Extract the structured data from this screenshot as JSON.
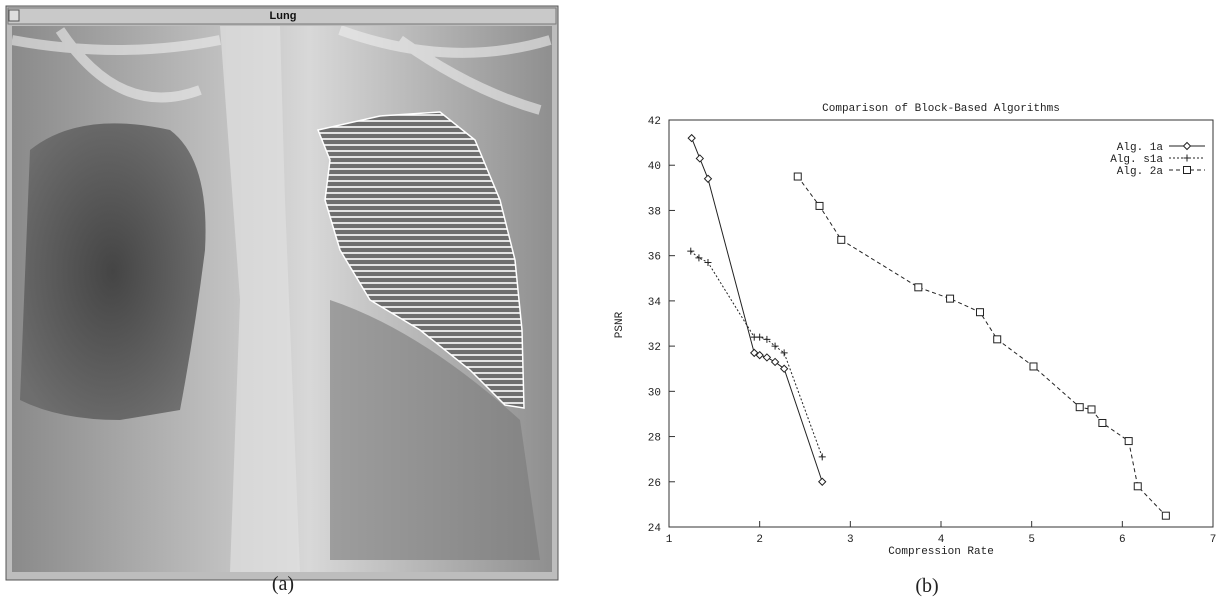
{
  "panel_a": {
    "window_title": "Lung",
    "caption": "(a)"
  },
  "chart_data": {
    "type": "line",
    "title": "Comparison of Block-Based Algorithms",
    "xlabel": "Compression Rate",
    "ylabel": "PSNR",
    "caption": "(b)",
    "xlim": [
      1,
      7
    ],
    "ylim": [
      24,
      42
    ],
    "xticks": [
      1,
      2,
      3,
      4,
      5,
      6,
      7
    ],
    "yticks": [
      24,
      26,
      28,
      30,
      32,
      34,
      36,
      38,
      40,
      42
    ],
    "grid": false,
    "legend": "upper-right",
    "series": [
      {
        "name": "Alg. 1a",
        "color": "#222222",
        "marker": "diamond",
        "dash": "solid",
        "x": [
          1.25,
          1.34,
          1.43,
          1.94,
          2.0,
          2.08,
          2.17,
          2.27,
          2.69
        ],
        "values": [
          41.2,
          40.3,
          39.4,
          31.7,
          31.6,
          31.5,
          31.3,
          31.0,
          26.0
        ]
      },
      {
        "name": "Alg. s1a",
        "color": "#222222",
        "marker": "plus",
        "dash": "dotted",
        "x": [
          1.24,
          1.33,
          1.43,
          1.94,
          2.0,
          2.08,
          2.17,
          2.27,
          2.69
        ],
        "values": [
          36.2,
          35.9,
          35.7,
          32.4,
          32.4,
          32.3,
          32.0,
          31.7,
          27.1
        ]
      },
      {
        "name": "Alg. 2a",
        "color": "#222222",
        "marker": "square",
        "dash": "dashed",
        "x": [
          2.42,
          2.66,
          2.9,
          3.75,
          4.1,
          4.43,
          4.62,
          5.02,
          5.53,
          5.66,
          5.78,
          6.07,
          6.17,
          6.48
        ],
        "values": [
          39.5,
          38.2,
          36.7,
          34.6,
          34.1,
          33.5,
          32.3,
          31.1,
          29.3,
          29.2,
          28.6,
          27.8,
          25.8,
          24.5
        ]
      }
    ]
  }
}
